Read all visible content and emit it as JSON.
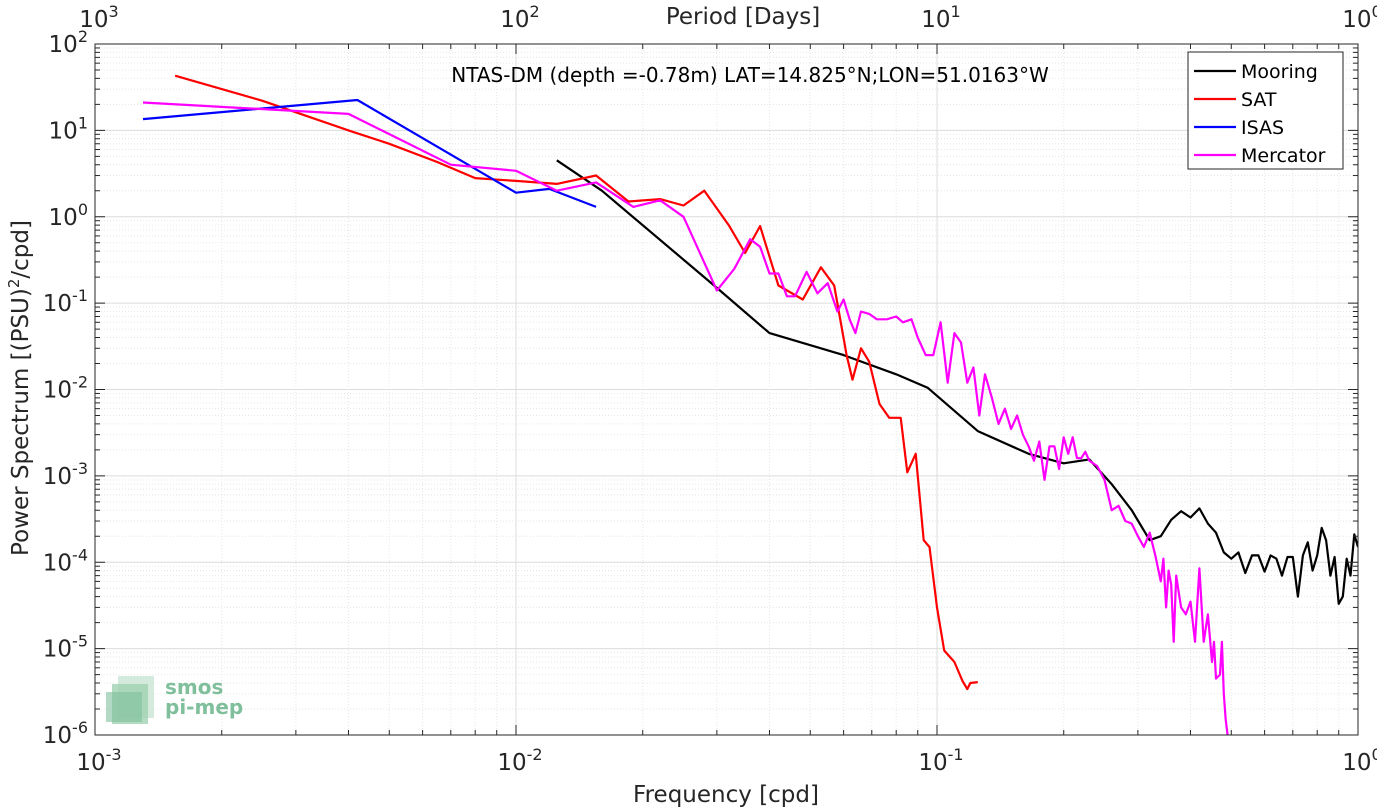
{
  "chart_data": {
    "type": "line",
    "title": "NTAS-DM (depth =-0.78m) LAT=14.825°N;LON=51.0163°W",
    "xlabel": "Frequency [cpd]",
    "ylabel_parts": [
      "Power Spectrum [(PSU)",
      "2",
      "/cpd]"
    ],
    "top_xlabel": "Period [Days]",
    "xscale": "log",
    "yscale": "log",
    "xlim": [
      0.001,
      1
    ],
    "ylim": [
      1e-06,
      100
    ],
    "grid": true,
    "legend_position": "top-right",
    "x_ticks": [
      {
        "value": 0.001,
        "base": "10",
        "exp": "-3"
      },
      {
        "value": 0.01,
        "base": "10",
        "exp": "-2"
      },
      {
        "value": 0.1,
        "base": "10",
        "exp": "-1"
      },
      {
        "value": 1,
        "base": "10",
        "exp": "0"
      }
    ],
    "y_ticks": [
      {
        "value": 1e-06,
        "base": "10",
        "exp": "-6"
      },
      {
        "value": 1e-05,
        "base": "10",
        "exp": "-5"
      },
      {
        "value": 0.0001,
        "base": "10",
        "exp": "-4"
      },
      {
        "value": 0.001,
        "base": "10",
        "exp": "-3"
      },
      {
        "value": 0.01,
        "base": "10",
        "exp": "-2"
      },
      {
        "value": 0.1,
        "base": "10",
        "exp": "-1"
      },
      {
        "value": 1,
        "base": "10",
        "exp": "0"
      },
      {
        "value": 10,
        "base": "10",
        "exp": "1"
      },
      {
        "value": 100,
        "base": "10",
        "exp": "2"
      }
    ],
    "top_ticks": [
      {
        "value": 0.001,
        "base": "10",
        "exp": "3"
      },
      {
        "value": 0.01,
        "base": "10",
        "exp": "2"
      },
      {
        "value": 0.1,
        "base": "10",
        "exp": "1"
      },
      {
        "value": 1,
        "base": "10",
        "exp": "0"
      }
    ],
    "series": [
      {
        "name": "Mooring",
        "color": "#000000",
        "points": [
          [
            0.0125,
            4.5
          ],
          [
            0.016,
            2.0
          ],
          [
            0.03,
            0.15
          ],
          [
            0.04,
            0.045
          ],
          [
            0.06,
            0.025
          ],
          [
            0.08,
            0.015
          ],
          [
            0.095,
            0.0105
          ],
          [
            0.125,
            0.0033
          ],
          [
            0.165,
            0.0018
          ],
          [
            0.2,
            0.0014
          ],
          [
            0.23,
            0.00155
          ],
          [
            0.26,
            0.0008
          ],
          [
            0.29,
            0.0004
          ],
          [
            0.32,
            0.00018
          ],
          [
            0.34,
            0.0002
          ],
          [
            0.36,
            0.00031
          ],
          [
            0.38,
            0.00039
          ],
          [
            0.4,
            0.00033
          ],
          [
            0.42,
            0.00042
          ],
          [
            0.44,
            0.00028
          ],
          [
            0.46,
            0.00022
          ],
          [
            0.48,
            0.00013
          ],
          [
            0.5,
            0.00011
          ],
          [
            0.52,
            0.00013
          ],
          [
            0.54,
            7.5e-05
          ],
          [
            0.56,
            0.00012
          ],
          [
            0.58,
            0.00012
          ],
          [
            0.6,
            7.8e-05
          ],
          [
            0.62,
            0.00012
          ],
          [
            0.64,
            0.00011
          ],
          [
            0.66,
            7e-05
          ],
          [
            0.68,
            0.000115
          ],
          [
            0.7,
            0.000115
          ],
          [
            0.72,
            4e-05
          ],
          [
            0.74,
            0.00012
          ],
          [
            0.76,
            0.00017
          ],
          [
            0.78,
            8e-05
          ],
          [
            0.8,
            0.00012
          ],
          [
            0.82,
            0.00025
          ],
          [
            0.84,
            0.00018
          ],
          [
            0.86,
            7e-05
          ],
          [
            0.88,
            0.000115
          ],
          [
            0.9,
            3.3e-05
          ],
          [
            0.92,
            4e-05
          ],
          [
            0.94,
            0.00011
          ],
          [
            0.96,
            7e-05
          ],
          [
            0.98,
            0.00021
          ],
          [
            1.0,
            0.00015
          ]
        ]
      },
      {
        "name": "SAT",
        "color": "#ff0000",
        "points": [
          [
            0.00155,
            43
          ],
          [
            0.0025,
            22
          ],
          [
            0.004,
            10
          ],
          [
            0.005,
            7
          ],
          [
            0.0065,
            4.3
          ],
          [
            0.008,
            2.8
          ],
          [
            0.01,
            2.6
          ],
          [
            0.0125,
            2.4
          ],
          [
            0.0155,
            3.0
          ],
          [
            0.0185,
            1.5
          ],
          [
            0.022,
            1.6
          ],
          [
            0.025,
            1.35
          ],
          [
            0.028,
            2.0
          ],
          [
            0.032,
            0.8
          ],
          [
            0.035,
            0.38
          ],
          [
            0.038,
            0.78
          ],
          [
            0.042,
            0.16
          ],
          [
            0.048,
            0.11
          ],
          [
            0.053,
            0.26
          ],
          [
            0.057,
            0.16
          ],
          [
            0.061,
            0.025
          ],
          [
            0.063,
            0.013
          ],
          [
            0.066,
            0.03
          ],
          [
            0.069,
            0.021
          ],
          [
            0.073,
            0.0068
          ],
          [
            0.077,
            0.0047
          ],
          [
            0.082,
            0.0047
          ],
          [
            0.085,
            0.0011
          ],
          [
            0.089,
            0.0018
          ],
          [
            0.093,
            0.00018
          ],
          [
            0.096,
            0.00015
          ],
          [
            0.1,
            3e-05
          ],
          [
            0.104,
            9.5e-06
          ],
          [
            0.11,
            7e-06
          ],
          [
            0.115,
            4.2e-06
          ],
          [
            0.118,
            3.4e-06
          ],
          [
            0.12,
            4e-06
          ],
          [
            0.125,
            4.1e-06
          ]
        ]
      },
      {
        "name": "ISAS",
        "color": "#0000ff",
        "points": [
          [
            0.0013,
            13.5
          ],
          [
            0.0042,
            22.5
          ],
          [
            0.01,
            1.9
          ],
          [
            0.012,
            2.1
          ],
          [
            0.0155,
            1.3
          ]
        ]
      },
      {
        "name": "Mercator",
        "color": "#ff00ff",
        "points": [
          [
            0.0013,
            21
          ],
          [
            0.004,
            15.5
          ],
          [
            0.007,
            4.0
          ],
          [
            0.01,
            3.4
          ],
          [
            0.0125,
            2.0
          ],
          [
            0.0155,
            2.5
          ],
          [
            0.019,
            1.3
          ],
          [
            0.022,
            1.55
          ],
          [
            0.025,
            1.0
          ],
          [
            0.03,
            0.14
          ],
          [
            0.033,
            0.25
          ],
          [
            0.036,
            0.55
          ],
          [
            0.038,
            0.45
          ],
          [
            0.04,
            0.22
          ],
          [
            0.042,
            0.22
          ],
          [
            0.044,
            0.12
          ],
          [
            0.046,
            0.12
          ],
          [
            0.049,
            0.23
          ],
          [
            0.052,
            0.13
          ],
          [
            0.055,
            0.17
          ],
          [
            0.058,
            0.08
          ],
          [
            0.06,
            0.11
          ],
          [
            0.062,
            0.065
          ],
          [
            0.064,
            0.045
          ],
          [
            0.066,
            0.08
          ],
          [
            0.069,
            0.075
          ],
          [
            0.072,
            0.065
          ],
          [
            0.076,
            0.065
          ],
          [
            0.08,
            0.07
          ],
          [
            0.083,
            0.06
          ],
          [
            0.087,
            0.065
          ],
          [
            0.09,
            0.04
          ],
          [
            0.094,
            0.025
          ],
          [
            0.098,
            0.025
          ],
          [
            0.102,
            0.06
          ],
          [
            0.106,
            0.012
          ],
          [
            0.11,
            0.045
          ],
          [
            0.114,
            0.035
          ],
          [
            0.118,
            0.012
          ],
          [
            0.122,
            0.018
          ],
          [
            0.126,
            0.005
          ],
          [
            0.13,
            0.015
          ],
          [
            0.135,
            0.008
          ],
          [
            0.14,
            0.004
          ],
          [
            0.145,
            0.006
          ],
          [
            0.15,
            0.0035
          ],
          [
            0.155,
            0.005
          ],
          [
            0.16,
            0.003
          ],
          [
            0.165,
            0.0022
          ],
          [
            0.17,
            0.0015
          ],
          [
            0.175,
            0.0025
          ],
          [
            0.18,
            0.0009
          ],
          [
            0.185,
            0.0022
          ],
          [
            0.19,
            0.0022
          ],
          [
            0.195,
            0.0012
          ],
          [
            0.2,
            0.0028
          ],
          [
            0.205,
            0.0018
          ],
          [
            0.21,
            0.0028
          ],
          [
            0.215,
            0.0016
          ],
          [
            0.22,
            0.0016
          ],
          [
            0.225,
            0.0019
          ],
          [
            0.23,
            0.0015
          ],
          [
            0.24,
            0.0013
          ],
          [
            0.25,
            0.0009
          ],
          [
            0.26,
            0.0004
          ],
          [
            0.27,
            0.00045
          ],
          [
            0.28,
            0.0003
          ],
          [
            0.29,
            0.00028
          ],
          [
            0.3,
            0.0002
          ],
          [
            0.31,
            0.00015
          ],
          [
            0.32,
            0.00022
          ],
          [
            0.33,
            0.00012
          ],
          [
            0.34,
            6e-05
          ],
          [
            0.345,
            0.00011
          ],
          [
            0.35,
            3e-05
          ],
          [
            0.355,
            8e-05
          ],
          [
            0.36,
            5.5e-05
          ],
          [
            0.365,
            1.2e-05
          ],
          [
            0.37,
            7e-05
          ],
          [
            0.375,
            4.5e-05
          ],
          [
            0.38,
            3e-05
          ],
          [
            0.39,
            2.5e-05
          ],
          [
            0.4,
            3.5e-05
          ],
          [
            0.41,
            1.2e-05
          ],
          [
            0.42,
            8.5e-05
          ],
          [
            0.43,
            1.2e-05
          ],
          [
            0.44,
            2.5e-05
          ],
          [
            0.45,
            7e-06
          ],
          [
            0.455,
            1.2e-05
          ],
          [
            0.46,
            4.5e-06
          ],
          [
            0.47,
            5e-06
          ],
          [
            0.475,
            1.2e-05
          ],
          [
            0.48,
            3e-06
          ],
          [
            0.485,
            1.5e-06
          ],
          [
            0.49,
            1e-06
          ]
        ]
      }
    ]
  },
  "logo": {
    "line1": "smos",
    "line2": "pi-mep"
  }
}
